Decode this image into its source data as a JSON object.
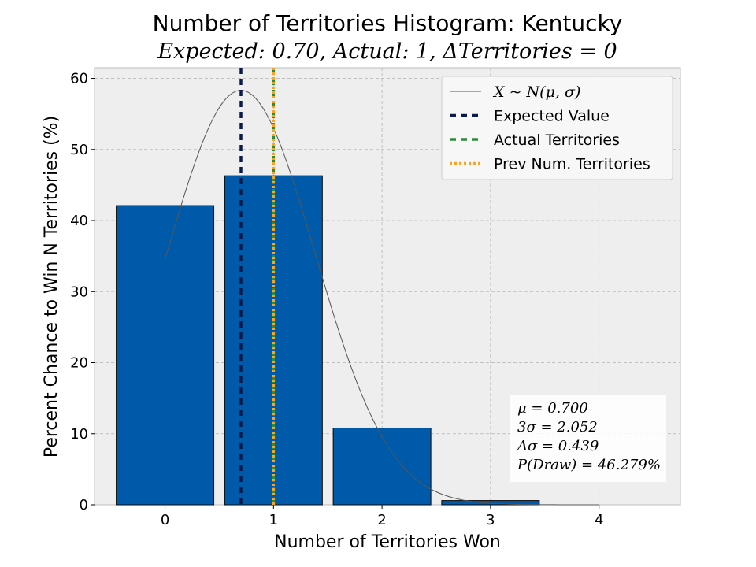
{
  "chart_data": {
    "type": "bar",
    "title": "Number of Territories Histogram: Kentucky",
    "subtitle": "Expected: 0.70, Actual: 1, ΔTerritories = 0",
    "xlabel": "Number of Territories Won",
    "ylabel": "Percent Chance to Win N Territories (%)",
    "categories": [
      0,
      1,
      2,
      3,
      4
    ],
    "values": [
      42.1,
      46.3,
      10.8,
      0.6,
      0.0
    ],
    "xlim": [
      -0.65,
      4.75
    ],
    "ylim": [
      0,
      61.5
    ],
    "xticks": [
      "0",
      "1",
      "2",
      "3",
      "4"
    ],
    "yticks": [
      0,
      10,
      20,
      30,
      40,
      50,
      60
    ],
    "grid": true,
    "bar_color": "#005AAA",
    "bar_edge_color": "#0a0a0a",
    "normal_curve": {
      "mu": 0.7,
      "sigma": 0.684,
      "x_range": [
        0,
        4
      ],
      "color": "#555555"
    },
    "vlines": [
      {
        "name": "Expected Value",
        "x": 0.7,
        "color": "#0b1a4a",
        "style": "dashed"
      },
      {
        "name": "Actual Territories",
        "x": 1.0,
        "color": "#2e8b3a",
        "style": "dashed"
      },
      {
        "name": "Prev Num. Territories",
        "x": 1.0,
        "color": "#f5a623",
        "style": "dotted"
      }
    ],
    "legend": {
      "position": "top-right",
      "entries": [
        {
          "label": "X ~ N(μ, σ)",
          "kind": "curve"
        },
        {
          "label": "Expected Value",
          "kind": "vline",
          "ref": 0
        },
        {
          "label": "Actual Territories",
          "kind": "vline",
          "ref": 1
        },
        {
          "label": "Prev Num. Territories",
          "kind": "vline",
          "ref": 2
        }
      ]
    },
    "stats_box": {
      "position": "bottom-right",
      "lines": [
        "μ = 0.700",
        "3σ = 2.052",
        "Δσ = 0.439",
        "P(Draw) = 46.279%"
      ]
    }
  }
}
